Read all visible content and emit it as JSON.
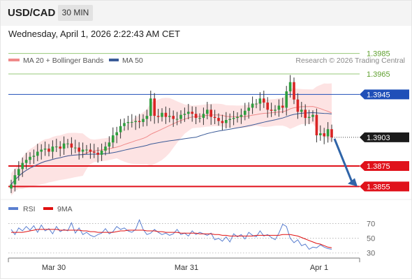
{
  "header": {
    "symbol": "USD/CAD",
    "timeframe": "30 MIN",
    "datetime": "Wednesday, April 1, 2026 2:22:43 AM CET"
  },
  "colors": {
    "ma20": "#f08a8a",
    "bollinger_fill": "#fde3e3",
    "ma50": "#3b5b98",
    "bull_candle": "#2e9e3e",
    "bear_candle": "#d92424",
    "resistance_green": "#97c978",
    "pivot_blue": "#1f4fb8",
    "support_red": "#e0121b",
    "arrow": "#2f64a8",
    "rsi": "#5a7fd0",
    "rsi_ma": "#e01010",
    "copyright": "#8a8a8a"
  },
  "chart_data": [
    {
      "type": "candlestick",
      "legend": [
        {
          "label": "MA 20 + Bollinger Bands",
          "color": "#f08a8a"
        },
        {
          "label": "MA 50",
          "color": "#3b5b98"
        }
      ],
      "copyright": "Research © 2026 Trading Central",
      "x_ticks": [
        "Mar 30",
        "Mar 31",
        "Apr 1"
      ],
      "y_range": [
        1.3845,
        1.3995
      ],
      "levels": [
        {
          "label": "1.3985",
          "value": 1.3985,
          "kind": "resistance"
        },
        {
          "label": "1.3965",
          "value": 1.3965,
          "kind": "resistance"
        },
        {
          "label": "1.3945",
          "value": 1.3945,
          "kind": "pivot"
        },
        {
          "label": "1.3903",
          "value": 1.3903,
          "kind": "last"
        },
        {
          "label": "1.3875",
          "value": 1.3875,
          "kind": "support"
        },
        {
          "label": "1.3855",
          "value": 1.3855,
          "kind": "support"
        }
      ],
      "close": [
        1.3857,
        1.3866,
        1.3872,
        1.3878,
        1.3881,
        1.3884,
        1.3885,
        1.3889,
        1.3891,
        1.3892,
        1.3889,
        1.3894,
        1.3894,
        1.3892,
        1.3897,
        1.3897,
        1.3893,
        1.3893,
        1.3889,
        1.3891,
        1.3891,
        1.3889,
        1.3888,
        1.3886,
        1.389,
        1.3894,
        1.3898,
        1.3905,
        1.3908,
        1.3914,
        1.3917,
        1.3918,
        1.3918,
        1.3919,
        1.3918,
        1.3921,
        1.3924,
        1.3941,
        1.3924,
        1.3923,
        1.3927,
        1.3923,
        1.3924,
        1.3921,
        1.3921,
        1.3925,
        1.3926,
        1.3928,
        1.3926,
        1.3922,
        1.3922,
        1.3926,
        1.393,
        1.3923,
        1.3922,
        1.3919,
        1.3917,
        1.392,
        1.3921,
        1.3922,
        1.3923,
        1.3925,
        1.3929,
        1.3932,
        1.3936,
        1.3936,
        1.3941,
        1.3937,
        1.393,
        1.3929,
        1.393,
        1.3934,
        1.3932,
        1.3948,
        1.3957,
        1.394,
        1.3928,
        1.393,
        1.3922,
        1.3923,
        1.3925,
        1.3905,
        1.3907,
        1.3904,
        1.3911,
        1.3903
      ]
    },
    {
      "type": "line",
      "legend": [
        {
          "label": "RSI",
          "color": "#5a7fd0"
        },
        {
          "label": "9MA",
          "color": "#e01010"
        }
      ],
      "y_ticks": [
        "70",
        "50",
        "30"
      ],
      "y_range": [
        25,
        78
      ],
      "series": [
        {
          "name": "RSI",
          "values": [
            62,
            55,
            64,
            60,
            66,
            61,
            67,
            58,
            68,
            60,
            63,
            56,
            66,
            59,
            62,
            60,
            71,
            57,
            64,
            55,
            58,
            54,
            52,
            55,
            57,
            63,
            56,
            59,
            66,
            62,
            64,
            60,
            58,
            62,
            75,
            62,
            55,
            57,
            62,
            58,
            55,
            57,
            54,
            56,
            62,
            55,
            57,
            53,
            60,
            55,
            58,
            56,
            54,
            57,
            48,
            50,
            46,
            52,
            45,
            56,
            52,
            55,
            49,
            58,
            54,
            52,
            60,
            53,
            55,
            51,
            48,
            57,
            69,
            66,
            50,
            44,
            48,
            40,
            42,
            35,
            38,
            37,
            41,
            38,
            36,
            35
          ]
        },
        {
          "name": "9MA",
          "values": [
            58,
            58,
            58,
            58,
            59,
            60,
            61,
            62,
            62,
            62,
            62,
            62,
            62,
            61,
            61,
            61,
            61,
            61,
            61,
            60,
            60,
            59,
            59,
            58,
            58,
            58,
            58,
            58,
            59,
            60,
            60,
            61,
            61,
            61,
            61,
            61,
            60,
            60,
            60,
            59,
            59,
            58,
            58,
            58,
            58,
            57,
            57,
            57,
            57,
            57,
            56,
            56,
            56,
            56,
            55,
            55,
            54,
            54,
            53,
            53,
            53,
            53,
            53,
            53,
            53,
            54,
            54,
            54,
            54,
            54,
            54,
            54,
            55,
            55,
            55,
            54,
            53,
            51,
            49,
            47,
            45,
            43,
            42,
            40,
            38,
            37
          ]
        }
      ]
    }
  ]
}
